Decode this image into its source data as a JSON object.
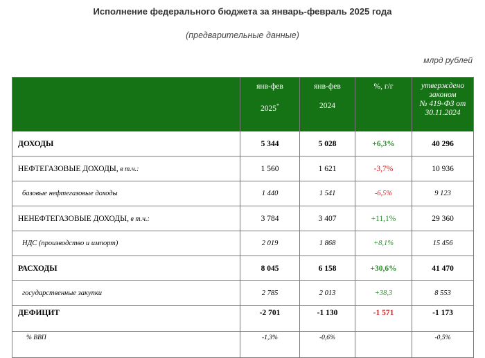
{
  "header": {
    "title": "Исполнение федерального бюджета за январь-февраль 2025 года",
    "subtitle": "(предварительные данные)",
    "units": "млрд рублей"
  },
  "columns": {
    "col1_line1": "янв-фев",
    "col1_line2": "2025",
    "col1_mark": "*",
    "col2_line1": "янв-фев",
    "col2_line2": "2024",
    "col3": "%, г/г",
    "col4_line1": "утверждено",
    "col4_line2": "законом",
    "col4_line3": "№ 419-ФЗ от",
    "col4_line4": "30.11.2024"
  },
  "rows": [
    {
      "label": "ДОХОДЫ",
      "note": "",
      "v2025": "5 344",
      "v2024": "5 028",
      "yoy": "+6,3%",
      "plan": "40 296"
    },
    {
      "label": "НЕФТЕГАЗОВЫЕ ДОХОДЫ,",
      "note": " в т.ч.:",
      "v2025": "1 560",
      "v2024": "1 621",
      "yoy": "-3,7%",
      "plan": "10 936"
    },
    {
      "label": "базовые нефтегазовые доходы",
      "note": "",
      "v2025": "1 440",
      "v2024": "1 541",
      "yoy": "-6,5%",
      "plan": "9 123"
    },
    {
      "label": "НЕНЕФТЕГАЗОВЫЕ ДОХОДЫ,",
      "note": " в т.ч.:",
      "v2025": "3 784",
      "v2024": "3 407",
      "yoy": "+11,1%",
      "plan": "29 360"
    },
    {
      "label": "НДС (производство и импорт)",
      "note": "",
      "v2025": "2 019",
      "v2024": "1 868",
      "yoy": "+8,1%",
      "plan": "15 456"
    },
    {
      "label": "РАСХОДЫ",
      "note": "",
      "v2025": "8 045",
      "v2024": "6 158",
      "yoy": "+30,6%",
      "plan": "41 470"
    },
    {
      "label": "государственные закупки",
      "note": "",
      "v2025": "2 785",
      "v2024": "2 013",
      "yoy": "+38,3",
      "plan": "8 553"
    },
    {
      "label": "ДЕФИЦИТ",
      "note": "",
      "v2025": "-2 701",
      "v2024": "-1 130",
      "yoy": "-1 571",
      "plan": "-1 173"
    },
    {
      "label": "% ВВП",
      "note": "",
      "v2025": "-1,3%",
      "v2024": "-0,6%",
      "yoy": "",
      "plan": "-0,5%"
    }
  ],
  "colors": {
    "header_bg": "#157215",
    "positive": "#2e8b2e",
    "negative": "#d42020"
  }
}
